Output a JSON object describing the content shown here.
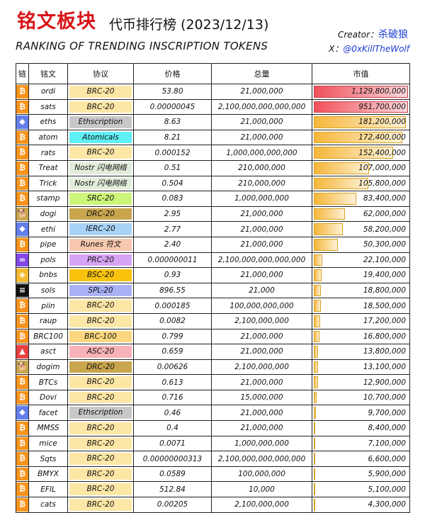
{
  "header": {
    "title": "铭文板块",
    "subtitle_cn": "代币排行榜 (2023/12/13)",
    "subtitle_en": "RANKING OF TRENDING INSCRIPTION TOKENS",
    "creator_label": "Creator：",
    "creator_name": "杀破狼",
    "x_label": "X：",
    "x_handle": "@0xKillTheWolf"
  },
  "colors": {
    "title": "#d81418",
    "bar_top": "#f0505a",
    "bar": "#f6b63a",
    "chains": {
      "btc": "#f7931a",
      "eth": "#627eea",
      "doge": "#c9a64e",
      "polygon": "#8247e5",
      "bnb": "#f3ba2f",
      "sol": "#111111",
      "avax": "#e84142"
    },
    "protocols": {
      "BRC-20": "#fde7a6",
      "Ethscription": "#c8c8c8",
      "Atomicals": "#5ff0f5",
      "Nostr 闪电网络": "#e2eedc",
      "SRC-20": "#cdf57a",
      "DRC-20": "#c9a64e",
      "IERC-20": "#a9d2f7",
      "Runes 符文": "#f7c8ae",
      "PRC-20": "#d6a4f5",
      "BSC-20": "#f9c20d",
      "SPL-20": "#aab1f5",
      "BRC-100": "#fcd77f",
      "ASC-20": "#f8b3b8"
    }
  },
  "table": {
    "columns": [
      "链",
      "铭文",
      "协议",
      "价格",
      "总量",
      "市值"
    ],
    "rows": [
      {
        "chain": "btc",
        "name": "ordi",
        "protocol": "BRC-20",
        "price": "53.80",
        "supply": "21,000,000",
        "mcap": "1,129,800,000",
        "bar": 1.0,
        "top": true
      },
      {
        "chain": "btc",
        "name": "sats",
        "protocol": "BRC-20",
        "price": "0.00000045",
        "supply": "2,100,000,000,000,000",
        "mcap": "951,700,000",
        "bar": 1.0,
        "top": true
      },
      {
        "chain": "eth",
        "name": "eths",
        "protocol": "Ethscription",
        "price": "8.63",
        "supply": "21,000,000",
        "mcap": "181,200,000",
        "bar": 0.98
      },
      {
        "chain": "btc",
        "name": "atom",
        "protocol": "Atomicals",
        "price": "8.21",
        "supply": "21,000,000",
        "mcap": "172,400,000",
        "bar": 0.94
      },
      {
        "chain": "btc",
        "name": "rats",
        "protocol": "BRC-20",
        "price": "0.000152",
        "supply": "1,000,000,000,000",
        "mcap": "152,400,000",
        "bar": 0.85
      },
      {
        "chain": "btc",
        "name": "Treat",
        "protocol": "Nostr 闪电网络",
        "price": "0.51",
        "supply": "210,000,000",
        "mcap": "107,000,000",
        "bar": 0.6
      },
      {
        "chain": "btc",
        "name": "Trick",
        "protocol": "Nostr 闪电网络",
        "price": "0.504",
        "supply": "210,000,000",
        "mcap": "105,800,000",
        "bar": 0.59
      },
      {
        "chain": "btc",
        "name": "stamp",
        "protocol": "SRC-20",
        "price": "0.083",
        "supply": "1,000,000,000",
        "mcap": "83,400,000",
        "bar": 0.47
      },
      {
        "chain": "doge",
        "name": "dogi",
        "protocol": "DRC-20",
        "price": "2.95",
        "supply": "21,000,000",
        "mcap": "62,000,000",
        "bar": 0.35
      },
      {
        "chain": "eth",
        "name": "ethi",
        "protocol": "IERC-20",
        "price": "2.77",
        "supply": "21,000,000",
        "mcap": "58,200,000",
        "bar": 0.33
      },
      {
        "chain": "btc",
        "name": "pipe",
        "protocol": "Runes 符文",
        "price": "2.40",
        "supply": "21,000,000",
        "mcap": "50,300,000",
        "bar": 0.28
      },
      {
        "chain": "polygon",
        "name": "pols",
        "protocol": "PRC-20",
        "price": "0.000000011",
        "supply": "2,100,000,000,000,000",
        "mcap": "22,100,000",
        "bar": 0.12
      },
      {
        "chain": "bnb",
        "name": "bnbs",
        "protocol": "BSC-20",
        "price": "0.93",
        "supply": "21,000,000",
        "mcap": "19,400,000",
        "bar": 0.11
      },
      {
        "chain": "sol",
        "name": "sols",
        "protocol": "SPL-20",
        "price": "896.55",
        "supply": "21,000",
        "mcap": "18,800,000",
        "bar": 0.1
      },
      {
        "chain": "btc",
        "name": "piin",
        "protocol": "BRC-20",
        "price": "0.000185",
        "supply": "100,000,000,000",
        "mcap": "18,500,000",
        "bar": 0.1
      },
      {
        "chain": "btc",
        "name": "raup",
        "protocol": "BRC-20",
        "price": "0.0082",
        "supply": "2,100,000,000",
        "mcap": "17,200,000",
        "bar": 0.095
      },
      {
        "chain": "btc",
        "name": "BRC100",
        "protocol": "BRC-100",
        "price": "0.799",
        "supply": "21,000,000",
        "mcap": "16,800,000",
        "bar": 0.09
      },
      {
        "chain": "avax",
        "name": "asct",
        "protocol": "ASC-20",
        "price": "0.659",
        "supply": "21,000,000",
        "mcap": "13,800,000",
        "bar": 0.075
      },
      {
        "chain": "doge",
        "name": "dogim",
        "protocol": "DRC-20",
        "price": "0.00626",
        "supply": "2,100,000,000",
        "mcap": "13,100,000",
        "bar": 0.072
      },
      {
        "chain": "btc",
        "name": "BTCs",
        "protocol": "BRC-20",
        "price": "0.613",
        "supply": "21,000,000",
        "mcap": "12,900,000",
        "bar": 0.07
      },
      {
        "chain": "btc",
        "name": "Dovi",
        "protocol": "BRC-20",
        "price": "0.716",
        "supply": "15,000,000",
        "mcap": "10,700,000",
        "bar": 0.058
      },
      {
        "chain": "eth",
        "name": "facet",
        "protocol": "Ethscription",
        "price": "0.46",
        "supply": "21,000,000",
        "mcap": "9,700,000",
        "bar": 0.053
      },
      {
        "chain": "btc",
        "name": "MMSS",
        "protocol": "BRC-20",
        "price": "0.4",
        "supply": "21,000,000",
        "mcap": "8,400,000",
        "bar": 0.046
      },
      {
        "chain": "btc",
        "name": "mice",
        "protocol": "BRC-20",
        "price": "0.0071",
        "supply": "1,000,000,000",
        "mcap": "7,100,000",
        "bar": 0.039
      },
      {
        "chain": "btc",
        "name": "Sqts",
        "protocol": "BRC-20",
        "price": "0.00000000313",
        "supply": "2,100,000,000,000,000",
        "mcap": "6,600,000",
        "bar": 0.036
      },
      {
        "chain": "btc",
        "name": "BMYX",
        "protocol": "BRC-20",
        "price": "0.0589",
        "supply": "100,000,000",
        "mcap": "5,900,000",
        "bar": 0.032
      },
      {
        "chain": "btc",
        "name": "EFIL",
        "protocol": "BRC-20",
        "price": "512.84",
        "supply": "10,000",
        "mcap": "5,100,000",
        "bar": 0.028
      },
      {
        "chain": "btc",
        "name": "cats",
        "protocol": "BRC-20",
        "price": "0.00205",
        "supply": "2,100,000,000",
        "mcap": "4,300,000",
        "bar": 0.024
      }
    ]
  }
}
